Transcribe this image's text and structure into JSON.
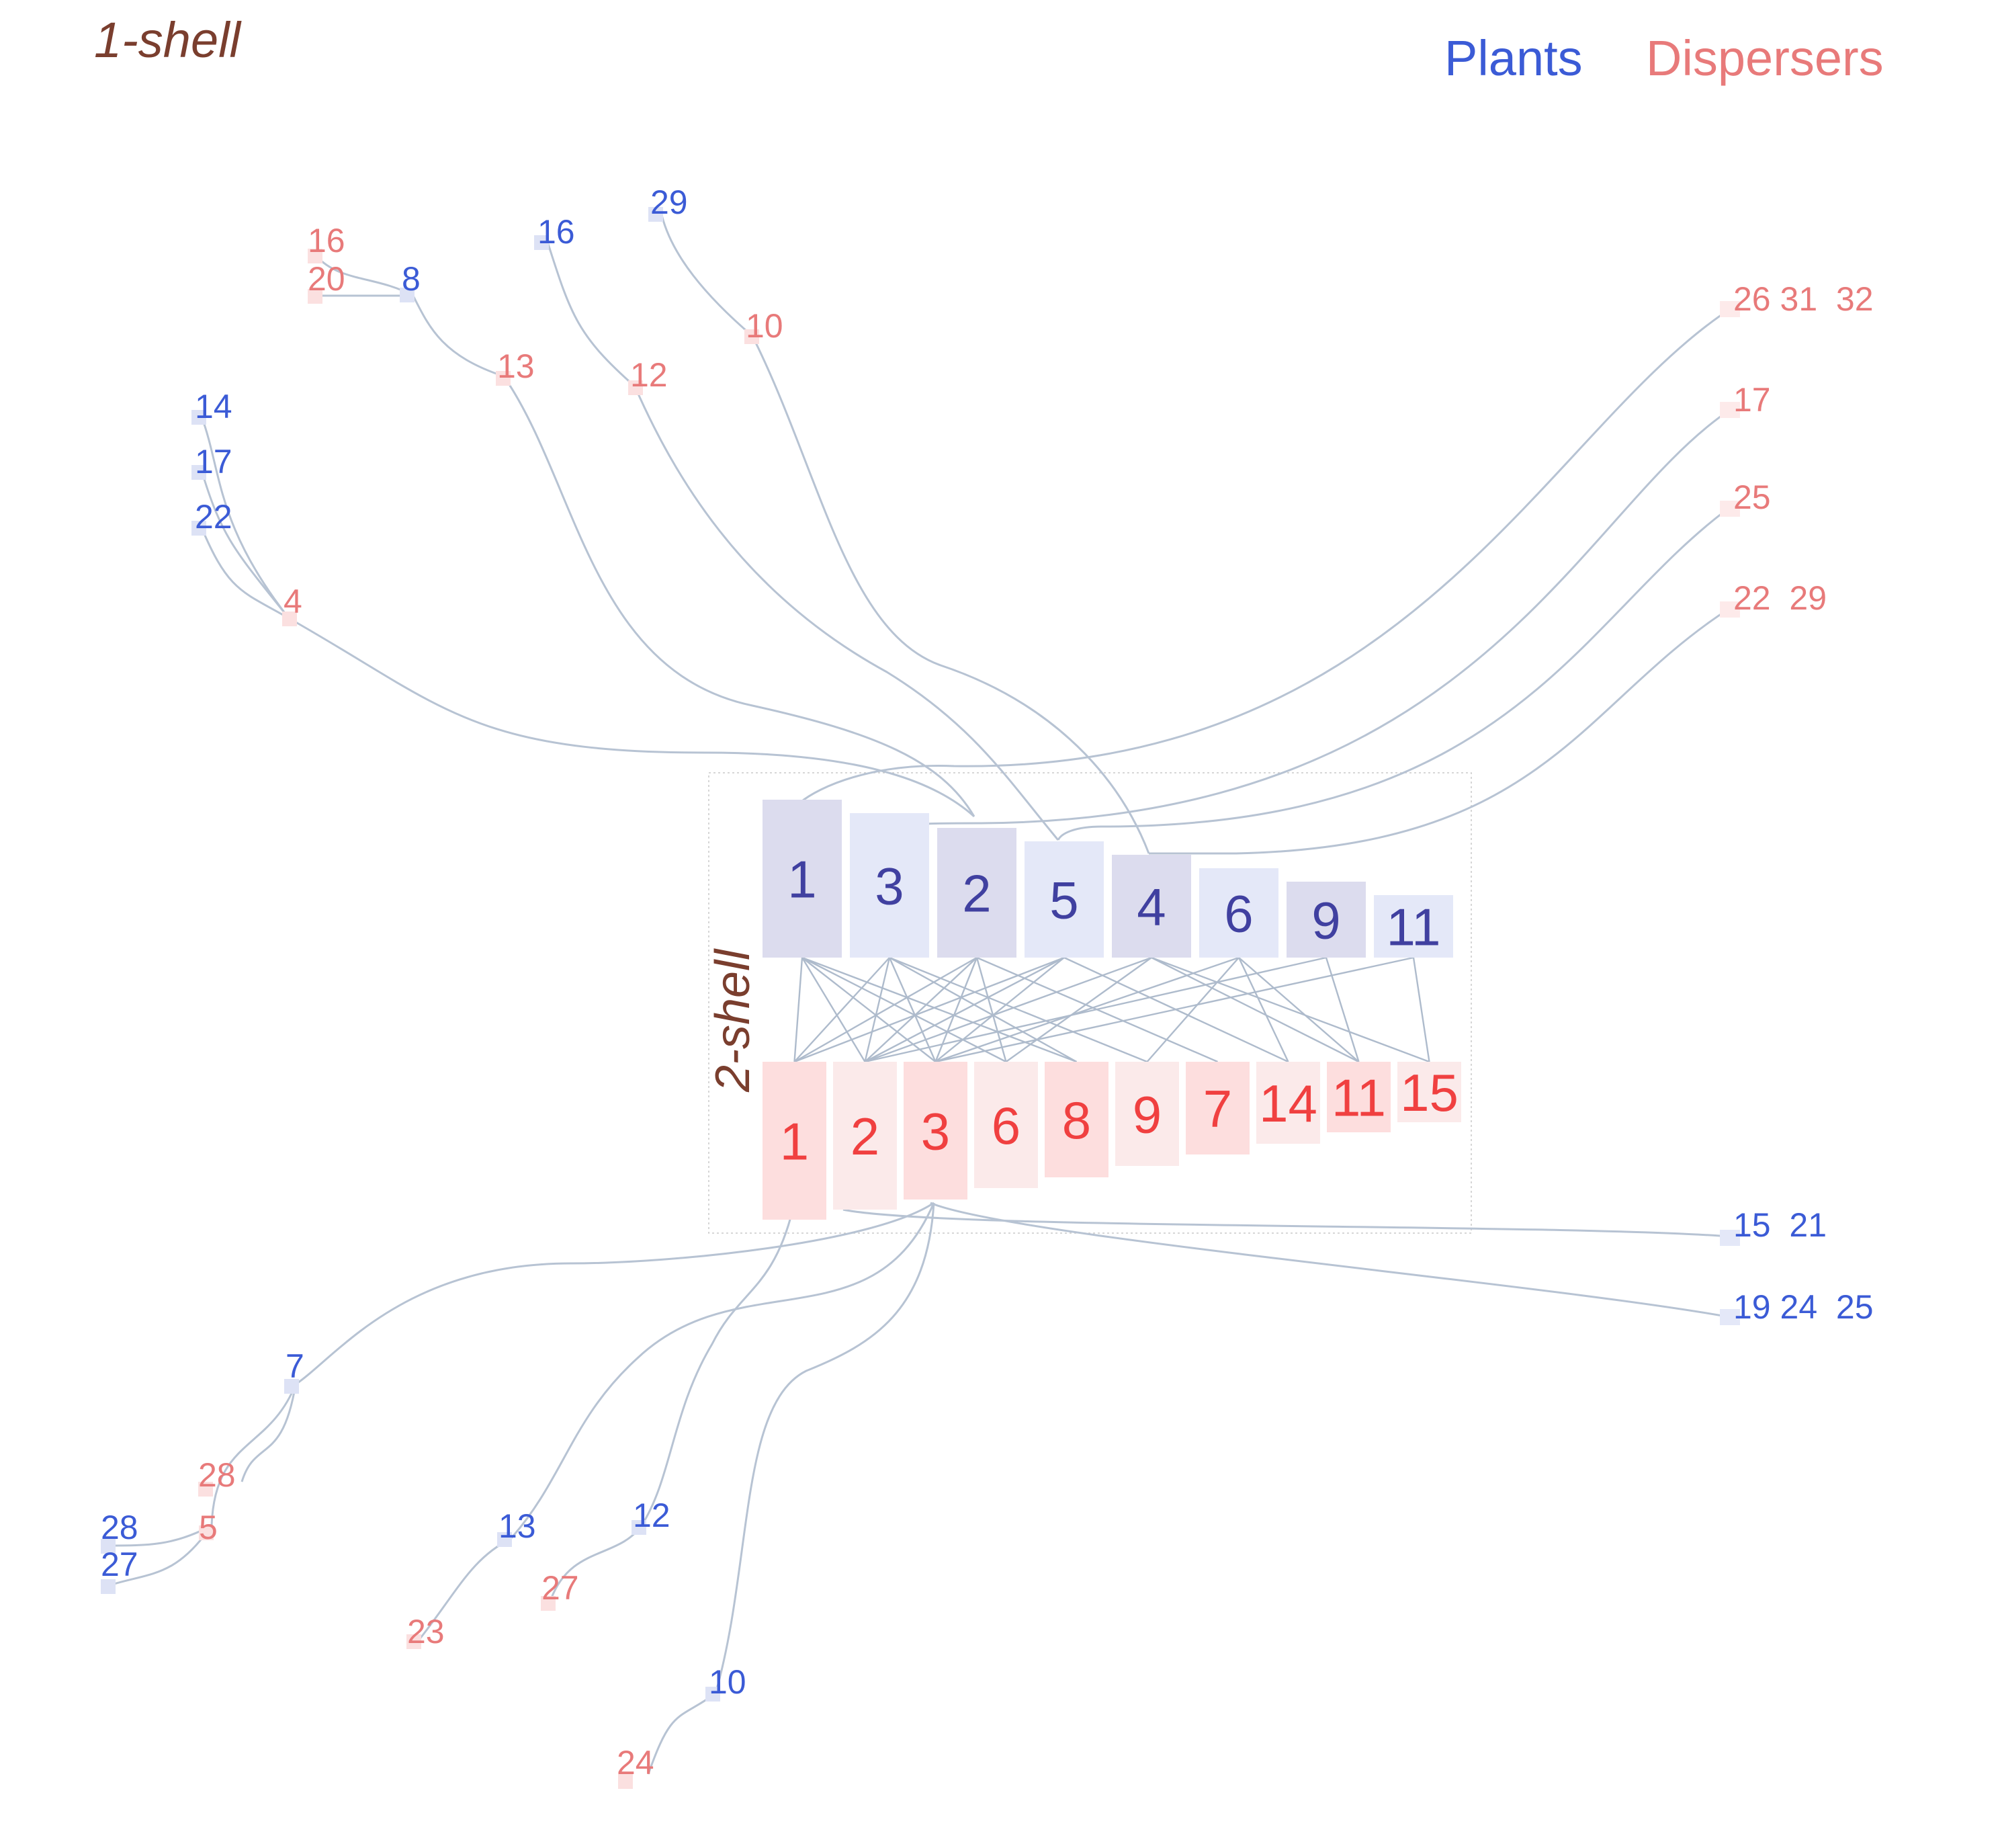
{
  "colors": {
    "plant": "#3b5bd6",
    "disperser": "#e87a7a",
    "core_plant_text": "#4040a0",
    "core_disperser_text": "#f04040",
    "link": "#b7c3d3",
    "shell_label": "#7a3e2e"
  },
  "shell_labels": {
    "outer": "1-shell",
    "inner": "2-shell"
  },
  "legend": {
    "plants": "Plants",
    "dispersers": "Dispersers"
  },
  "core": {
    "plants": [
      "1",
      "3",
      "2",
      "5",
      "4",
      "6",
      "9",
      "11"
    ],
    "dispersers": [
      "1",
      "2",
      "3",
      "6",
      "8",
      "9",
      "7",
      "14",
      "11",
      "15"
    ]
  },
  "outer_nodes": {
    "plants": [
      "29",
      "16",
      "8",
      "14",
      "17",
      "22",
      "7",
      "28",
      "27",
      "13",
      "12",
      "10"
    ],
    "plant_groups": [
      "15  21",
      "19 24  25"
    ],
    "dispersers": [
      "16",
      "20",
      "13",
      "12",
      "10",
      "4",
      "28",
      "5",
      "23",
      "27",
      "24"
    ],
    "disperser_groups": [
      "26 31  32",
      "17",
      "25",
      "22  29"
    ]
  }
}
